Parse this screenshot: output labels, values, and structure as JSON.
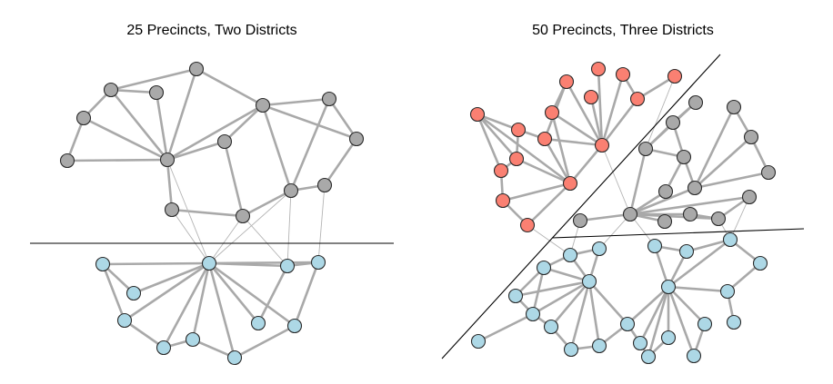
{
  "panels": [
    {
      "title": "25 Precincts, Two Districts",
      "precinct_count": 25,
      "district_count": 2,
      "district_colors": {
        "A": "#a9a9a9",
        "B": "#add8e6"
      }
    },
    {
      "title": "50 Precincts, Three Districts",
      "precinct_count": 50,
      "district_count": 3,
      "district_colors": {
        "A": "#fa8072",
        "B": "#a9a9a9",
        "C": "#add8e6"
      }
    }
  ],
  "edge_color": "#a9a9a9",
  "divider_color": "#000000"
}
